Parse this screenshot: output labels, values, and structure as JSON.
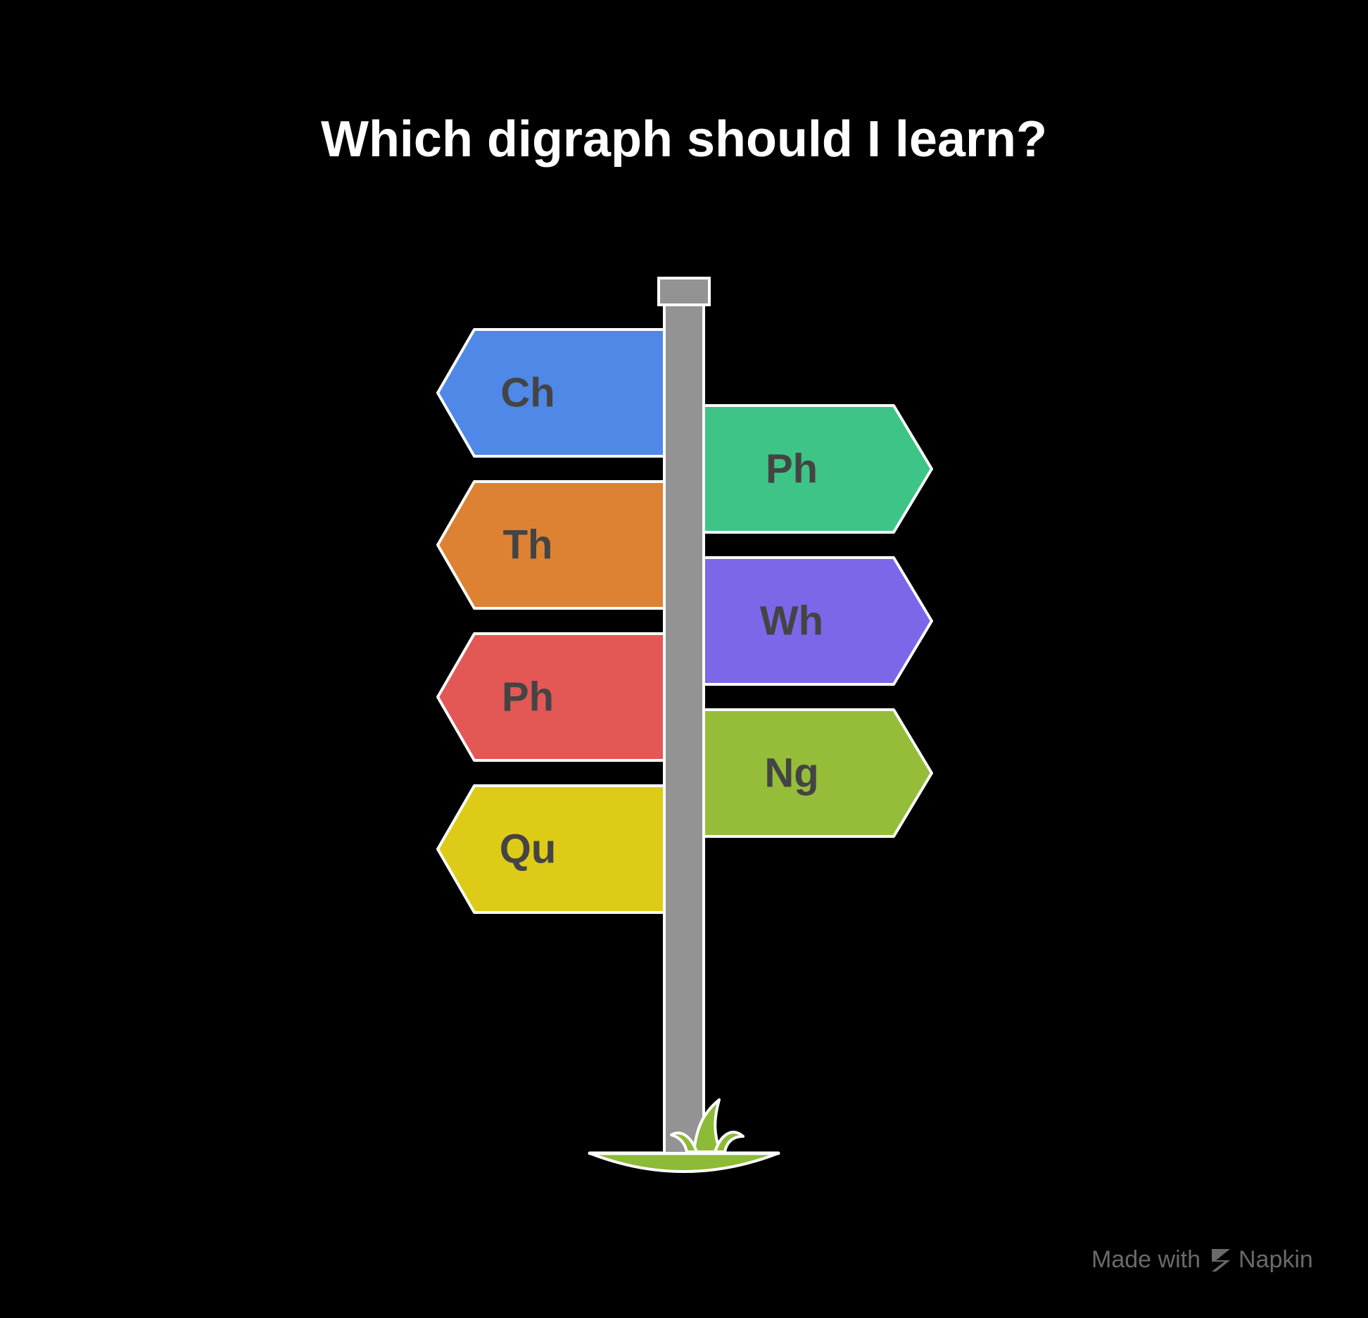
{
  "title": "Which digraph should I learn?",
  "signs_left": [
    {
      "label": "Ch",
      "color": "#4F88E6"
    },
    {
      "label": "Th",
      "color": "#DD8232"
    },
    {
      "label": "Ph",
      "color": "#E35855"
    },
    {
      "label": "Qu",
      "color": "#DDCB17"
    }
  ],
  "signs_right": [
    {
      "label": "Ph",
      "color": "#3EC486"
    },
    {
      "label": "Wh",
      "color": "#7C67E8"
    },
    {
      "label": "Ng",
      "color": "#95BD3A"
    }
  ],
  "colors": {
    "background": "#000000",
    "pole": "#939393",
    "outline": "#ffffff",
    "grass": "#8DBA37"
  },
  "watermark": {
    "prefix": "Made with",
    "brand": "Napkin"
  }
}
